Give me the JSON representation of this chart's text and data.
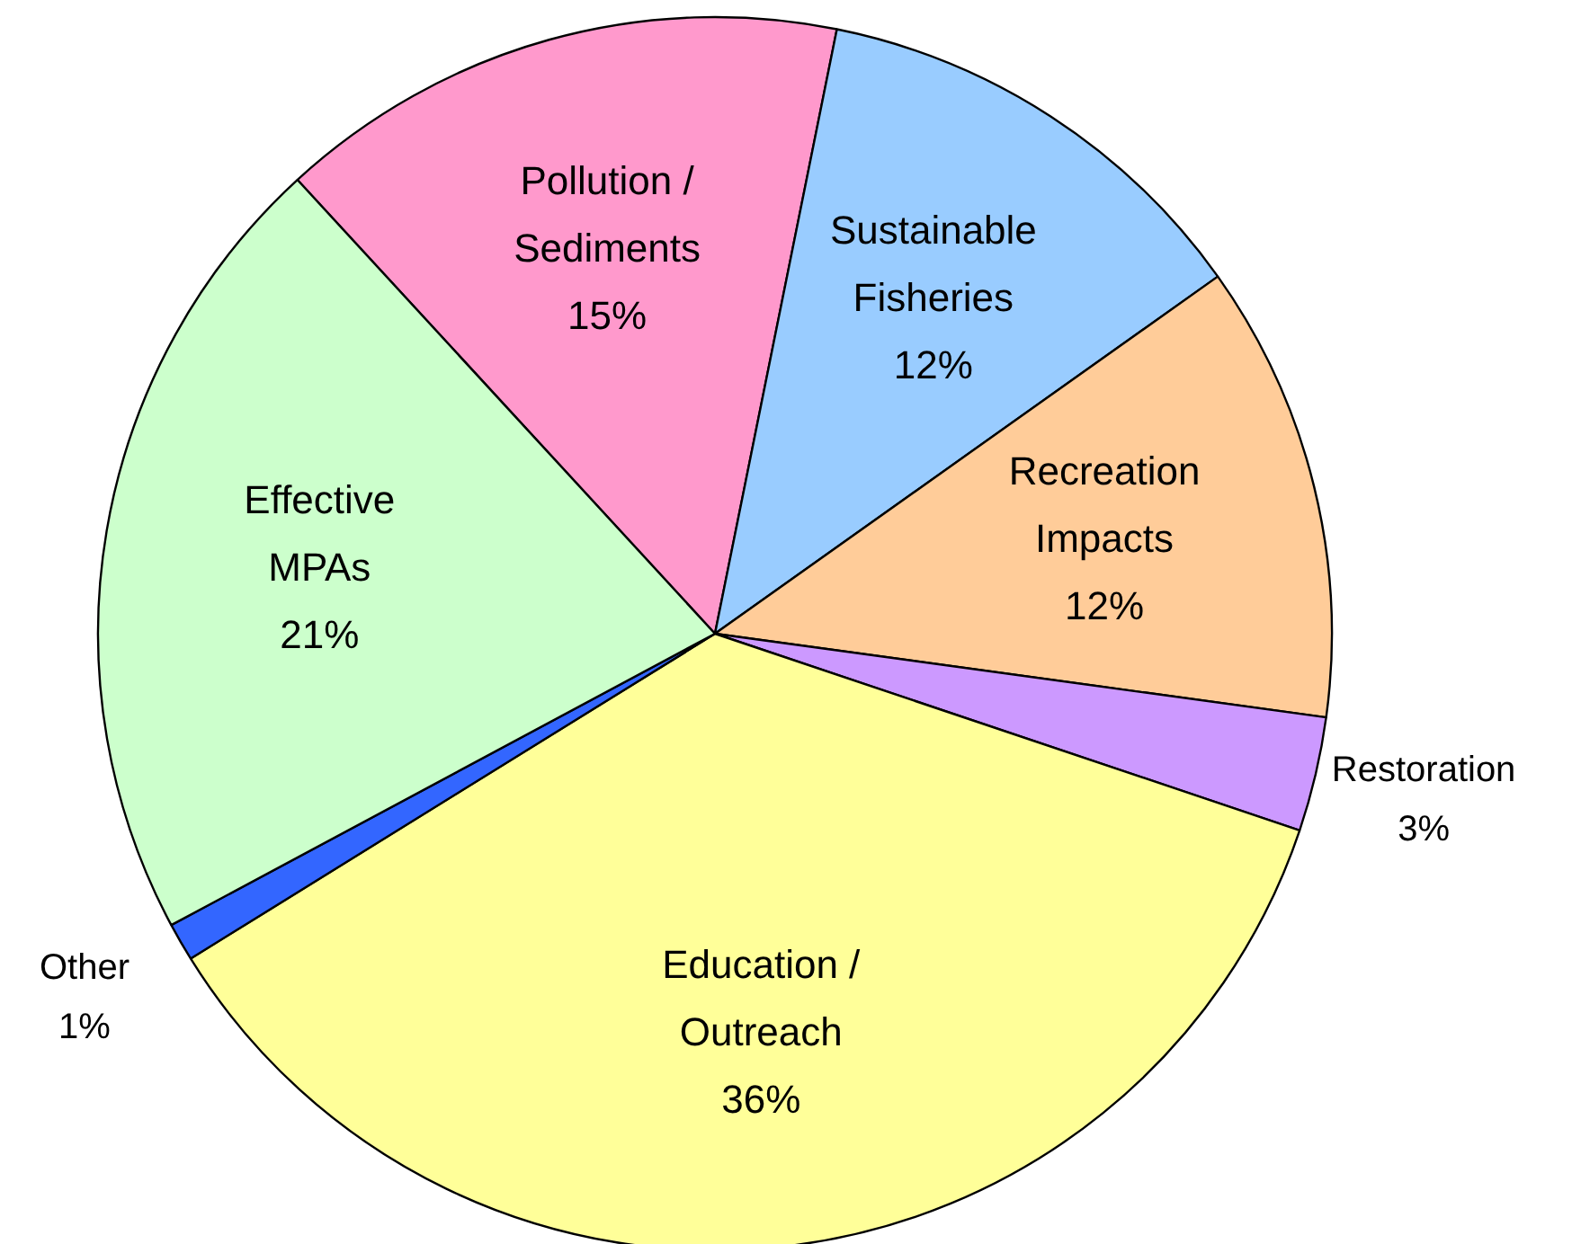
{
  "chart_data": {
    "type": "pie",
    "categories": [
      "Pollution /\nSediments",
      "Sustainable\nFisheries",
      "Recreation\nImpacts",
      "Restoration",
      "Education /\nOutreach",
      "Other",
      "Effective\nMPAs"
    ],
    "values": [
      15,
      12,
      12,
      3,
      36,
      1,
      21
    ],
    "value_labels": [
      "15%",
      "12%",
      "12%",
      "3%",
      "36%",
      "1%",
      "21%"
    ],
    "colors": [
      "#ff99cc",
      "#99ccff",
      "#ffcc99",
      "#cc99ff",
      "#ffff99",
      "#3366ff",
      "#ccffcc"
    ]
  }
}
